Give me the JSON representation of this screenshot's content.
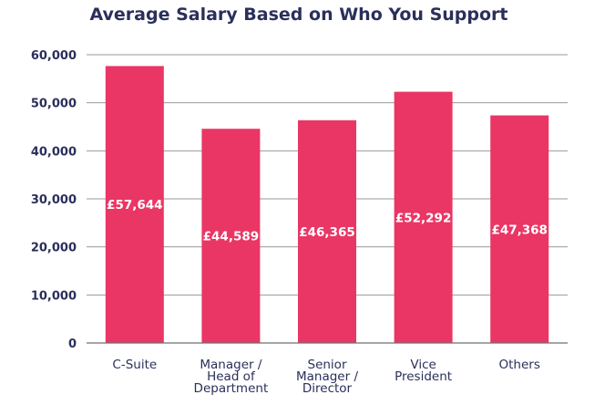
{
  "chart_data": {
    "type": "bar",
    "title": "Average Salary Based on Who You Support",
    "categories": [
      [
        "C-Suite"
      ],
      [
        "Manager /",
        "Head of",
        "Department"
      ],
      [
        "Senior",
        "Manager /",
        "Director"
      ],
      [
        "Vice",
        "President"
      ],
      [
        "Others"
      ]
    ],
    "values": [
      57644,
      44589,
      46365,
      52292,
      47368
    ],
    "data_labels": [
      "£57,644",
      "£44,589",
      "£46,365",
      "£52,292",
      "£47,368"
    ],
    "yticks": [
      0,
      10000,
      20000,
      30000,
      40000,
      50000,
      60000
    ],
    "ytick_labels": [
      "0",
      "10,000",
      "20,000",
      "30,000",
      "40,000",
      "50,000",
      "60,000"
    ],
    "ylim": [
      0,
      60000
    ],
    "xlabel": "",
    "ylabel": "",
    "grid": true,
    "bar_color": "#ea3665",
    "text_color": "#2a2f5b"
  }
}
